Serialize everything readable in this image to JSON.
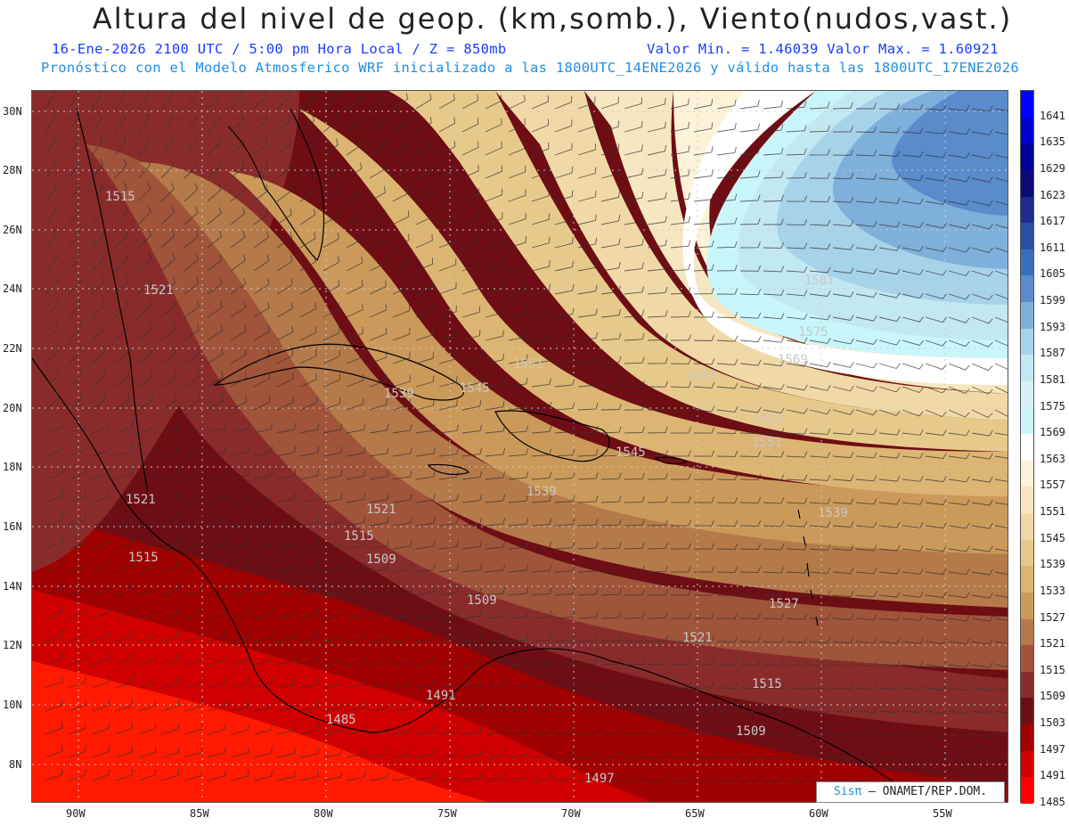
{
  "header": {
    "title": "Altura del nivel de geop. (km,somb.), Viento(nudos,vast.)",
    "line1_left": "16-Ene-2026  2100 UTC / 5:00 pm Hora Local / Z = 850mb",
    "line1_right": "Valor Min. = 1.46039  Valor Max. = 1.60921",
    "line2": "Pronóstico con el Modelo Atmosferico WRF inicializado a las 1800UTC_14ENE2026 y válido hasta las  1800UTC_17ENE2026"
  },
  "map": {
    "latitude_labels": [
      "30N",
      "28N",
      "26N",
      "24N",
      "22N",
      "20N",
      "18N",
      "16N",
      "14N",
      "12N",
      "10N",
      "8N"
    ],
    "longitude_labels": [
      "90W",
      "85W",
      "80W",
      "75W",
      "70W",
      "65W",
      "60W",
      "55W"
    ],
    "contour_labels": [
      {
        "text": "1515"
      },
      {
        "text": "1521"
      },
      {
        "text": "1521"
      },
      {
        "text": "1515"
      },
      {
        "text": "1521"
      },
      {
        "text": "1515"
      },
      {
        "text": "1509"
      },
      {
        "text": "1509"
      },
      {
        "text": "1491"
      },
      {
        "text": "1485"
      },
      {
        "text": "1497"
      },
      {
        "text": "1509"
      },
      {
        "text": "1515"
      },
      {
        "text": "1521"
      },
      {
        "text": "1527"
      },
      {
        "text": "1539"
      },
      {
        "text": "1539"
      },
      {
        "text": "1545"
      },
      {
        "text": "1545"
      },
      {
        "text": "1551"
      },
      {
        "text": "1551"
      },
      {
        "text": "1557"
      },
      {
        "text": "1563"
      },
      {
        "text": "1569"
      },
      {
        "text": "1575"
      },
      {
        "text": "1581"
      },
      {
        "text": "1539"
      }
    ],
    "credit_logo": "Sisπ",
    "credit_text": " – ONAMET/REP.DOM."
  },
  "legend": {
    "items": [
      {
        "value": "1641",
        "color": "#0000ff"
      },
      {
        "value": "1635",
        "color": "#0000cc"
      },
      {
        "value": "1629",
        "color": "#000099"
      },
      {
        "value": "1623",
        "color": "#0a0a7a"
      },
      {
        "value": "1617",
        "color": "#1f2a8f"
      },
      {
        "value": "1611",
        "color": "#2b4ea8"
      },
      {
        "value": "1605",
        "color": "#3a6fbf"
      },
      {
        "value": "1599",
        "color": "#5a8ccc"
      },
      {
        "value": "1593",
        "color": "#7fb0db"
      },
      {
        "value": "1587",
        "color": "#a7d3ea"
      },
      {
        "value": "1581",
        "color": "#c2e8f2"
      },
      {
        "value": "1575",
        "color": "#d6f2f8"
      },
      {
        "value": "1569",
        "color": "#c8f6fb"
      },
      {
        "value": "1563",
        "color": "#ffffff"
      },
      {
        "value": "1557",
        "color": "#fbf2d8"
      },
      {
        "value": "1551",
        "color": "#f6e7c1"
      },
      {
        "value": "1545",
        "color": "#f0d9a6"
      },
      {
        "value": "1539",
        "color": "#e8c98c"
      },
      {
        "value": "1533",
        "color": "#ddb573"
      },
      {
        "value": "1527",
        "color": "#cb9a5b"
      },
      {
        "value": "1521",
        "color": "#b57a4a"
      },
      {
        "value": "1515",
        "color": "#a0543a"
      },
      {
        "value": "1509",
        "color": "#8a2b2b"
      },
      {
        "value": "1503",
        "color": "#6e0e14"
      },
      {
        "value": "1497",
        "color": "#a00000"
      },
      {
        "value": "1491",
        "color": "#d00000"
      },
      {
        "value": "1485",
        "color": "#ff0000"
      }
    ]
  }
}
